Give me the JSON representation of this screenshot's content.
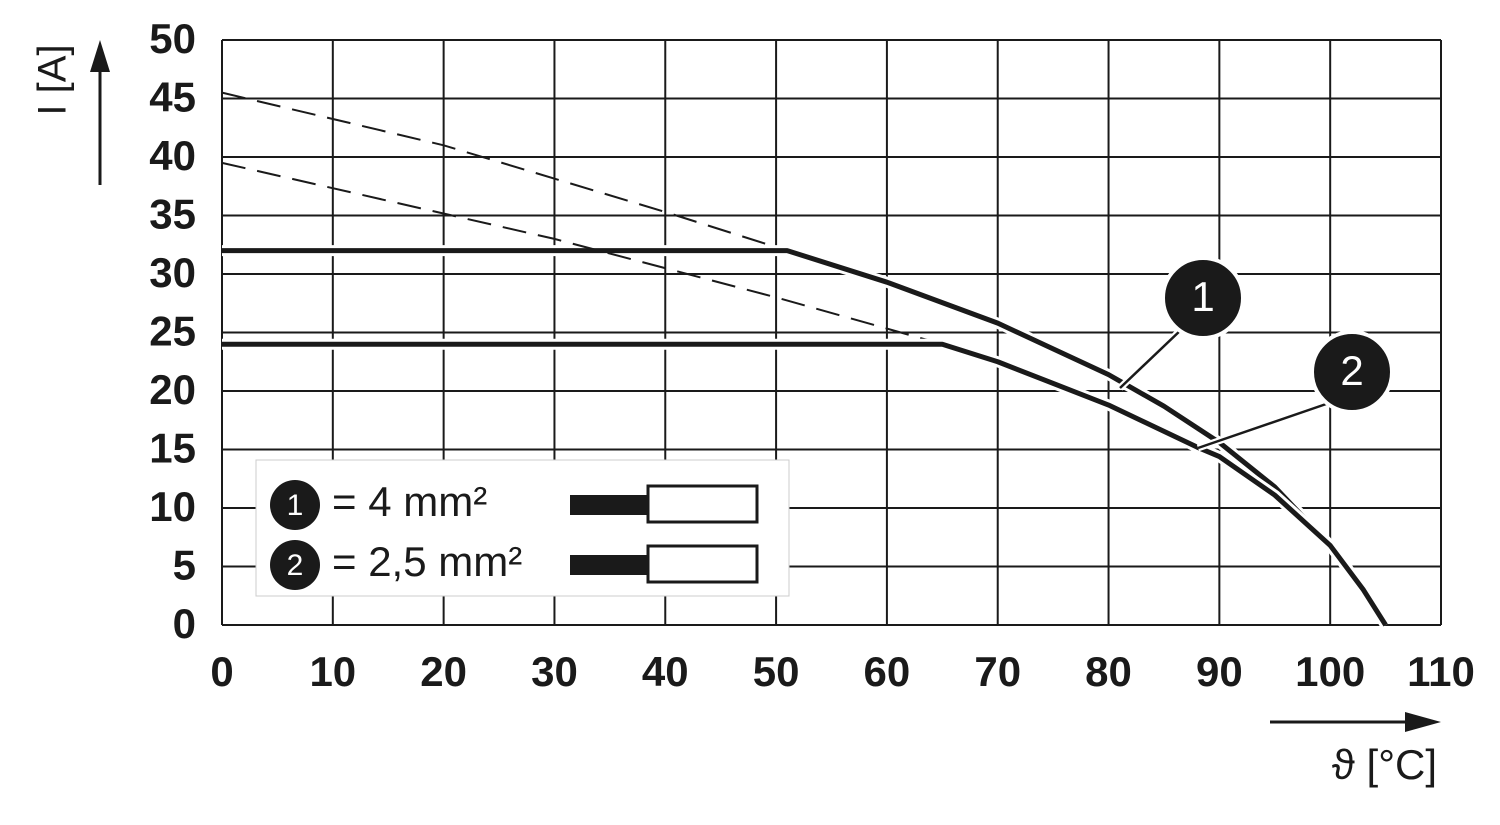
{
  "chart_data": {
    "type": "line",
    "x_label": "ϑ [°C]",
    "y_label": "I [A]",
    "xlim": [
      0,
      110
    ],
    "xticks": [
      0,
      10,
      20,
      30,
      40,
      50,
      60,
      70,
      80,
      90,
      100,
      110
    ],
    "ylim": [
      0,
      50
    ],
    "yticks": [
      0,
      5,
      10,
      15,
      20,
      25,
      30,
      35,
      40,
      45,
      50
    ],
    "grid": true,
    "series": [
      {
        "name": "1",
        "label": "= 4 mm²",
        "color": "#1a1a1a",
        "x": [
          0,
          51,
          60,
          70,
          80,
          85,
          90,
          95,
          100,
          103,
          105
        ],
        "values": [
          32,
          32,
          29.3,
          25.8,
          21.4,
          18.7,
          15.6,
          11.8,
          6.8,
          3,
          0
        ],
        "dashed_x": [
          0,
          20,
          40,
          51
        ],
        "dashed_values": [
          45.5,
          41,
          35.3,
          32
        ]
      },
      {
        "name": "2",
        "label": "= 2,5 mm²",
        "color": "#1a1a1a",
        "x": [
          0,
          65,
          70,
          80,
          88,
          90,
          95,
          100,
          103,
          105
        ],
        "values": [
          24,
          24,
          22.5,
          18.8,
          15.2,
          14.4,
          11.1,
          6.8,
          3,
          0
        ],
        "dashed_x": [
          0,
          30,
          50,
          65
        ],
        "dashed_values": [
          39.5,
          33,
          28,
          24
        ]
      }
    ]
  }
}
